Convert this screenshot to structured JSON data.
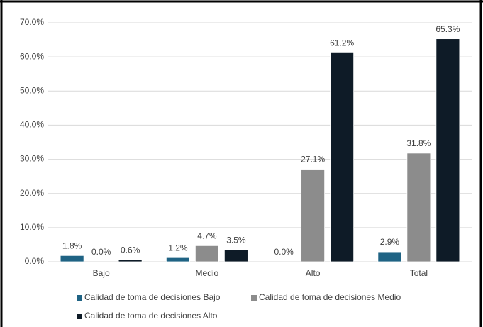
{
  "chart_data": {
    "type": "bar",
    "categories": [
      "Bajo",
      "Medio",
      "Alto",
      "Total"
    ],
    "series": [
      {
        "name": "Calidad de toma de decisiones Bajo",
        "color": "#1f6384",
        "values": [
          1.8,
          1.2,
          0.0,
          2.9
        ],
        "value_labels": [
          "1.8%",
          "1.2%",
          "0.0%",
          "2.9%"
        ]
      },
      {
        "name": "Calidad de toma de decisiones Medio",
        "color": "#8c8c8c",
        "values": [
          0.0,
          4.7,
          27.1,
          31.8
        ],
        "value_labels": [
          "0.0%",
          "4.7%",
          "27.1%",
          "31.8%"
        ]
      },
      {
        "name": "Calidad de toma de decisiones Alto",
        "color": "#0e1b27",
        "values": [
          0.6,
          3.5,
          61.2,
          65.3
        ],
        "value_labels": [
          "0.6%",
          "3.5%",
          "61.2%",
          "65.3%"
        ]
      }
    ],
    "ylim": [
      0,
      70
    ],
    "yticks": [
      {
        "value": 0,
        "label": "0.0%"
      },
      {
        "value": 10,
        "label": "10.0%"
      },
      {
        "value": 20,
        "label": "20.0%"
      },
      {
        "value": 30,
        "label": "30.0%"
      },
      {
        "value": 40,
        "label": "40.0%"
      },
      {
        "value": 50,
        "label": "50.0%"
      },
      {
        "value": 60,
        "label": "60.0%"
      },
      {
        "value": 70,
        "label": "70.0%"
      }
    ],
    "grid": true
  }
}
